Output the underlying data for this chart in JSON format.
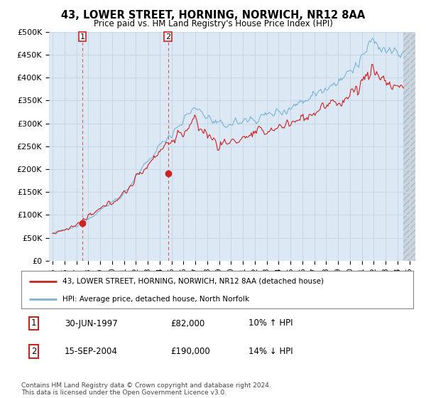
{
  "title": "43, LOWER STREET, HORNING, NORWICH, NR12 8AA",
  "subtitle": "Price paid vs. HM Land Registry's House Price Index (HPI)",
  "sale1_date": 1997.5,
  "sale1_price": 82000,
  "sale2_date": 2004.71,
  "sale2_price": 190000,
  "legend_line1": "43, LOWER STREET, HORNING, NORWICH, NR12 8AA (detached house)",
  "legend_line2": "HPI: Average price, detached house, North Norfolk",
  "footer": "Contains HM Land Registry data © Crown copyright and database right 2024.\nThis data is licensed under the Open Government Licence v3.0.",
  "hpi_color": "#7ab3d4",
  "price_color": "#cc2222",
  "marker_color": "#cc2222",
  "bg_color": "#dce9f5",
  "grid_color": "#c8d8e8",
  "ylim": [
    0,
    500000
  ],
  "xlim_start": 1994.7,
  "xlim_end": 2025.5,
  "yticks": [
    0,
    50000,
    100000,
    150000,
    200000,
    250000,
    300000,
    350000,
    400000,
    450000,
    500000
  ],
  "ytick_labels": [
    "£0",
    "£50K",
    "£100K",
    "£150K",
    "£200K",
    "£250K",
    "£300K",
    "£350K",
    "£400K",
    "£450K",
    "£500K"
  ],
  "xticks": [
    1995,
    1996,
    1997,
    1998,
    1999,
    2000,
    2001,
    2002,
    2003,
    2004,
    2005,
    2006,
    2007,
    2008,
    2009,
    2010,
    2011,
    2012,
    2013,
    2014,
    2015,
    2016,
    2017,
    2018,
    2019,
    2020,
    2021,
    2022,
    2023,
    2024,
    2025
  ],
  "hatch_start": 2024.5,
  "data_end": 2024.5
}
